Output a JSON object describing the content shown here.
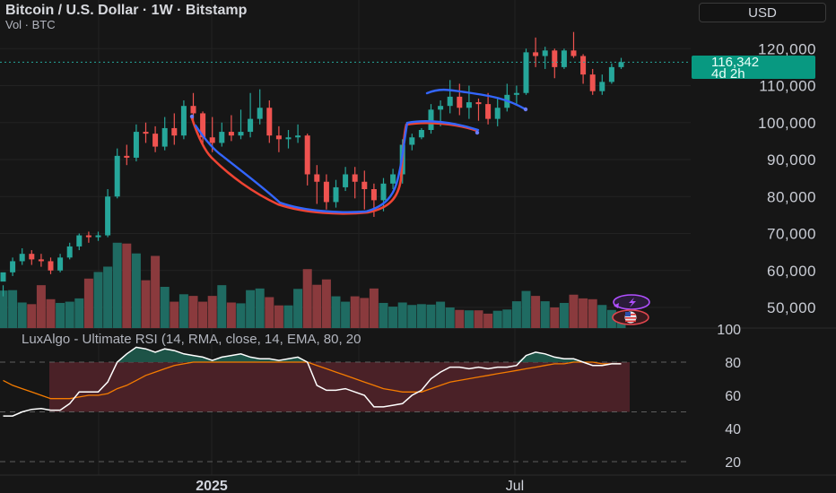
{
  "header": {
    "title": "Bitcoin / U.S. Dollar · 1W · Bitstamp",
    "volume_label": "Vol · BTC",
    "currency": "USD"
  },
  "price_tag": {
    "price": "116,342",
    "countdown": "4d 2h"
  },
  "rsi_panel": {
    "label": "LuxAlgo - Ultimate RSI (14, RMA, close, 14, EMA, 80, 20"
  },
  "colors": {
    "up": "#26a69a",
    "down": "#ef5350",
    "background": "#161616",
    "rsi_line": "#ffffff",
    "signal_line": "#f57c00",
    "drawing_red": "#ef4433",
    "drawing_blue": "#3366ff"
  },
  "icons": [
    "lightning-icon",
    "us-flag-icon"
  ],
  "chart_data": [
    {
      "type": "candlestick",
      "title": "Bitcoin / U.S. Dollar · 1W · Bitstamp",
      "price_axis_ticks": [
        120000,
        110000,
        100000,
        90000,
        80000,
        70000,
        60000,
        50000
      ],
      "price_axis_labels": [
        "120,000",
        "110,000",
        "100,000",
        "90,000",
        "80,000",
        "70,000",
        "60,000",
        "50,000"
      ],
      "x_tick_labels": [
        "2025",
        "Jul"
      ],
      "ylim": [
        46000,
        128000
      ],
      "last_price": 116342,
      "candles": [
        [
          57000,
          59500,
          56000,
          53000
        ],
        [
          59500,
          62500,
          63500,
          58500
        ],
        [
          62500,
          64500,
          66000,
          61500
        ],
        [
          64500,
          63000,
          65500,
          61500
        ],
        [
          63000,
          62500,
          64500,
          61000
        ],
        [
          62500,
          60000,
          63500,
          59000
        ],
        [
          60000,
          63500,
          64500,
          59500
        ],
        [
          63500,
          66500,
          67500,
          63000
        ],
        [
          66500,
          69500,
          70000,
          65500
        ],
        [
          69500,
          69000,
          70500,
          67500
        ],
        [
          69000,
          69500,
          70500,
          68000
        ],
        [
          69500,
          80000,
          82000,
          69000
        ],
        [
          80000,
          91000,
          93000,
          79500
        ],
        [
          91000,
          90500,
          94000,
          88500
        ],
        [
          90500,
          97500,
          99500,
          89500
        ],
        [
          97500,
          97000,
          100000,
          94500
        ],
        [
          97000,
          93500,
          99000,
          92000
        ],
        [
          93500,
          98500,
          101500,
          92500
        ],
        [
          98500,
          96500,
          102500,
          94000
        ],
        [
          96500,
          104500,
          106000,
          95500
        ],
        [
          104500,
          102500,
          108000,
          99500
        ],
        [
          102500,
          96000,
          103000,
          93500
        ],
        [
          96000,
          94500,
          101500,
          92000
        ],
        [
          94500,
          97500,
          100000,
          93500
        ],
        [
          97500,
          96500,
          102000,
          95000
        ],
        [
          96500,
          97500,
          103500,
          95500
        ],
        [
          97500,
          101000,
          108000,
          96000
        ],
        [
          101000,
          104000,
          109000,
          99500
        ],
        [
          104000,
          96500,
          106000,
          94500
        ],
        [
          96500,
          95500,
          99000,
          92000
        ],
        [
          95500,
          96000,
          98000,
          93000
        ],
        [
          96000,
          96500,
          99500,
          94500
        ],
        [
          96500,
          86000,
          97000,
          83000
        ],
        [
          86000,
          84000,
          88500,
          78000
        ],
        [
          84000,
          78500,
          86000,
          76500
        ],
        [
          78500,
          82500,
          84500,
          77000
        ],
        [
          82500,
          86000,
          88000,
          81500
        ],
        [
          86000,
          84000,
          88000,
          79500
        ],
        [
          84000,
          82000,
          87000,
          76500
        ],
        [
          82000,
          79000,
          83500,
          74500
        ],
        [
          79000,
          83500,
          85000,
          76000
        ],
        [
          83500,
          86000,
          87500,
          82000
        ],
        [
          86000,
          94000,
          95500,
          83500
        ],
        [
          94000,
          96000,
          97000,
          92500
        ],
        [
          96000,
          98000,
          98500,
          95500
        ],
        [
          98000,
          103500,
          105000,
          97000
        ],
        [
          103500,
          104500,
          106000,
          99000
        ],
        [
          104500,
          107000,
          111500,
          102500
        ],
        [
          107000,
          104000,
          110500,
          102000
        ],
        [
          104000,
          105500,
          110000,
          101000
        ],
        [
          105500,
          105000,
          106500,
          100500
        ],
        [
          105000,
          101000,
          108000,
          99500
        ],
        [
          101000,
          104000,
          106500,
          99000
        ],
        [
          104000,
          107500,
          110500,
          103000
        ],
        [
          107500,
          108000,
          110000,
          105000
        ],
        [
          108000,
          119000,
          120000,
          107500
        ],
        [
          119000,
          118000,
          123000,
          115000
        ],
        [
          118000,
          119500,
          120500,
          114500
        ],
        [
          119500,
          115000,
          120000,
          112000
        ],
        [
          115000,
          119500,
          120000,
          114500
        ],
        [
          119500,
          118000,
          124500,
          117500
        ],
        [
          118000,
          113000,
          118500,
          110500
        ],
        [
          113000,
          108500,
          114500,
          107500
        ],
        [
          108500,
          111000,
          113000,
          107500
        ],
        [
          111000,
          115000,
          116000,
          110500
        ],
        [
          115000,
          116342,
          117500,
          114500
        ]
      ],
      "volume": [
        9.1,
        9.2,
        6.2,
        5.8,
        10.4,
        7.0,
        6.1,
        6.4,
        7.2,
        12.0,
        13.6,
        14.9,
        20.7,
        20.5,
        18.1,
        11.6,
        17.5,
        10.0,
        6.4,
        8.2,
        7.8,
        6.4,
        7.8,
        10.4,
        6.2,
        6.0,
        9.2,
        9.6,
        7.5,
        5.5,
        5.5,
        9.5,
        14.3,
        10.5,
        11.8,
        7.7,
        6.4,
        7.7,
        7.3,
        9.6,
        6.1,
        5.2,
        6.2,
        5.6,
        5.8,
        5.7,
        6.4,
        5.0,
        4.4,
        4.3,
        4.3,
        3.5,
        4.2,
        4.5,
        6.5,
        9.0,
        7.8,
        6.5,
        5.0,
        6.1,
        8.1,
        7.2,
        7.0,
        5.6,
        4.4,
        4.0
      ],
      "annotations": [
        {
          "type": "freehand",
          "color": "red",
          "description": "cup pattern drawing"
        },
        {
          "type": "freehand",
          "color": "blue",
          "description": "cup pattern drawing"
        }
      ]
    },
    {
      "type": "line",
      "title": "LuxAlgo - Ultimate RSI (14, RMA, close, 14, EMA, 80, 20",
      "y_axis_ticks": [
        100,
        80,
        60,
        40,
        20
      ],
      "ylim": [
        15,
        100
      ],
      "levels": [
        80,
        50,
        20
      ],
      "series": [
        {
          "values": [
            47.5,
            47.5,
            50,
            51.5,
            52,
            51,
            51,
            55,
            62,
            62,
            62,
            68,
            80,
            85,
            89,
            88,
            86,
            88,
            87,
            85,
            84,
            83,
            81,
            83,
            84,
            85,
            83,
            82,
            82,
            81,
            82,
            83,
            80,
            66,
            63,
            63,
            64,
            62,
            60,
            53,
            53,
            54,
            55,
            60,
            63,
            70,
            74,
            77,
            77,
            76,
            77,
            76,
            77,
            77,
            78,
            84,
            86,
            85,
            83,
            82,
            82,
            80,
            78,
            78,
            79,
            79
          ]
        },
        {
          "values": [
            69,
            66,
            64,
            62,
            60,
            58,
            58,
            58,
            59,
            60,
            60,
            61,
            64,
            66,
            69,
            72,
            74,
            76,
            78,
            79,
            80,
            80,
            80,
            80,
            80,
            80,
            80,
            80,
            80,
            80,
            80,
            80,
            80,
            78,
            76,
            74,
            72,
            70,
            68,
            66,
            64,
            63,
            62,
            62,
            62,
            64,
            66,
            68,
            69,
            70,
            71,
            72,
            73,
            74,
            75,
            76,
            77,
            78,
            79,
            79,
            80,
            80,
            80,
            79,
            79,
            79
          ]
        }
      ]
    }
  ]
}
